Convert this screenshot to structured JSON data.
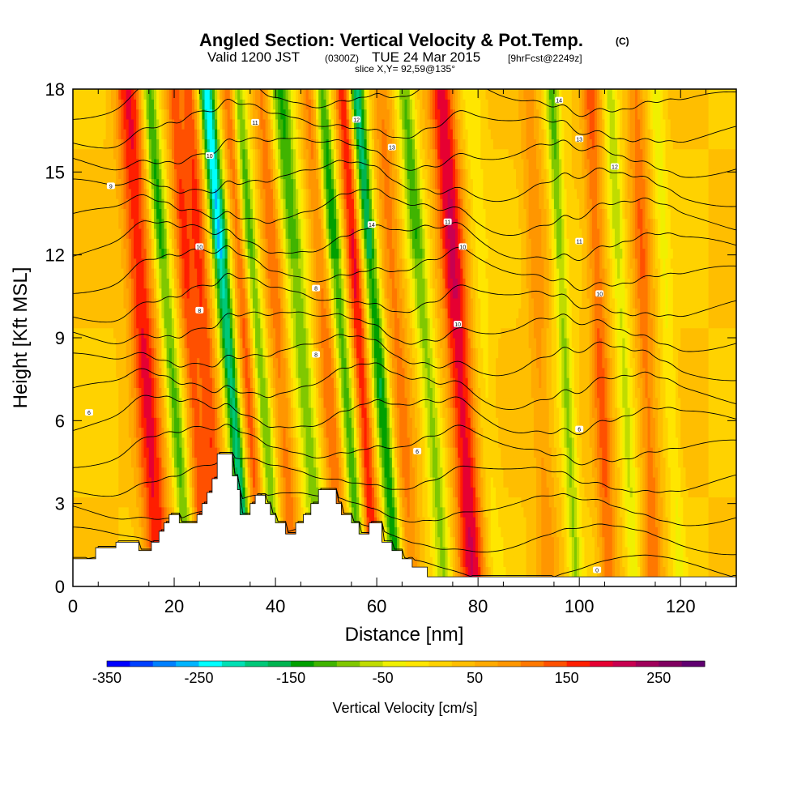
{
  "header": {
    "title": "Angled Section: Vertical Velocity & Pot.Temp.",
    "title_units": "(C)",
    "valid_prefix": "Valid 1200 JST",
    "valid_zulu": "(0300Z)",
    "valid_date": "TUE 24 Mar 2015",
    "forecast": "[9hrFcst@2249z]",
    "slice": "slice X,Y= 92,59@135°"
  },
  "chart_data": {
    "type": "heatmap",
    "xlabel": "Distance [nm]",
    "ylabel": "Height [Kft MSL]",
    "xlim": [
      0,
      131
    ],
    "ylim": [
      0,
      18
    ],
    "x_ticks": [
      0,
      20,
      40,
      60,
      80,
      100,
      120
    ],
    "y_ticks": [
      0,
      3,
      6,
      9,
      12,
      15,
      18
    ],
    "colorbar": {
      "label": "Vertical Velocity [cm/s]",
      "range": [
        -350,
        300
      ],
      "tick_values": [
        -350,
        -250,
        -150,
        -50,
        50,
        150,
        250
      ],
      "tick_labels": [
        "-350",
        "-250",
        "-150",
        "-50",
        "50",
        "150",
        "250"
      ],
      "colors": [
        "#0000ff",
        "#0040ff",
        "#0080ff",
        "#00b4ff",
        "#00ffff",
        "#00e0b4",
        "#00c878",
        "#00b450",
        "#00a000",
        "#40b400",
        "#80c800",
        "#c0dc00",
        "#f0f000",
        "#ffe600",
        "#ffd200",
        "#ffbe00",
        "#ffaa00",
        "#ff9600",
        "#ff7800",
        "#ff5000",
        "#ff1e00",
        "#e60032",
        "#c80050",
        "#a0005a",
        "#800060",
        "#600070"
      ]
    },
    "updrafts_downdrafts": [
      {
        "x": 14,
        "w": 2.6,
        "value": 150
      },
      {
        "x": 19,
        "w": 1.6,
        "value": -150
      },
      {
        "x": 23,
        "w": 1.6,
        "value": 110
      },
      {
        "x": 26,
        "w": 1.8,
        "value": 120
      },
      {
        "x": 30.5,
        "w": 1.6,
        "value": -260
      },
      {
        "x": 34,
        "w": 1.5,
        "value": 110
      },
      {
        "x": 36.5,
        "w": 1.5,
        "value": -140
      },
      {
        "x": 40.5,
        "w": 1.8,
        "value": 90
      },
      {
        "x": 45,
        "w": 2.2,
        "value": -140
      },
      {
        "x": 50,
        "w": 2.0,
        "value": 90
      },
      {
        "x": 53,
        "w": 1.6,
        "value": -170
      },
      {
        "x": 56.5,
        "w": 1.6,
        "value": 150
      },
      {
        "x": 60,
        "w": 1.6,
        "value": -200
      },
      {
        "x": 64,
        "w": 2.0,
        "value": 80
      },
      {
        "x": 69.5,
        "w": 1.8,
        "value": -130
      },
      {
        "x": 76,
        "w": 2.6,
        "value": 170
      },
      {
        "x": 81,
        "w": 2.0,
        "value": -40
      },
      {
        "x": 92,
        "w": 2.0,
        "value": 60
      },
      {
        "x": 97,
        "w": 1.4,
        "value": -120
      },
      {
        "x": 104,
        "w": 1.8,
        "value": 100
      },
      {
        "x": 108.5,
        "w": 1.4,
        "value": -90
      },
      {
        "x": 113,
        "w": 1.8,
        "value": 90
      },
      {
        "x": 117.5,
        "w": 1.4,
        "value": -60
      }
    ],
    "contour_labels": [
      {
        "x": 3.2,
        "y": 6.3,
        "text": "6"
      },
      {
        "x": 7.5,
        "y": 14.5,
        "text": "9"
      },
      {
        "x": 27,
        "y": 15.6,
        "text": "10"
      },
      {
        "x": 25,
        "y": 12.3,
        "text": "10"
      },
      {
        "x": 25,
        "y": 10,
        "text": "8"
      },
      {
        "x": 36,
        "y": 16.8,
        "text": "11"
      },
      {
        "x": 48,
        "y": 10.8,
        "text": "8"
      },
      {
        "x": 48,
        "y": 8.4,
        "text": "8"
      },
      {
        "x": 56,
        "y": 16.9,
        "text": "12"
      },
      {
        "x": 63,
        "y": 15.9,
        "text": "13"
      },
      {
        "x": 59,
        "y": 13.1,
        "text": "14"
      },
      {
        "x": 74,
        "y": 13.2,
        "text": "11"
      },
      {
        "x": 77,
        "y": 12.3,
        "text": "10"
      },
      {
        "x": 76,
        "y": 9.5,
        "text": "10"
      },
      {
        "x": 68,
        "y": 4.9,
        "text": "6"
      },
      {
        "x": 96,
        "y": 17.6,
        "text": "14"
      },
      {
        "x": 100,
        "y": 16.2,
        "text": "13"
      },
      {
        "x": 107,
        "y": 15.2,
        "text": "12"
      },
      {
        "x": 100,
        "y": 12.5,
        "text": "11"
      },
      {
        "x": 104,
        "y": 10.6,
        "text": "10"
      },
      {
        "x": 100,
        "y": 5.7,
        "text": "6"
      },
      {
        "x": 103.5,
        "y": 0.6,
        "text": "0"
      }
    ],
    "terrain": [
      [
        0,
        1
      ],
      [
        4.5,
        1
      ],
      [
        4.5,
        1.4
      ],
      [
        8.5,
        1.4
      ],
      [
        8.5,
        1.6
      ],
      [
        13,
        1.6
      ],
      [
        13,
        1.3
      ],
      [
        15.5,
        1.3
      ],
      [
        15.5,
        1.6
      ],
      [
        17,
        1.6
      ],
      [
        17,
        2
      ],
      [
        18,
        2
      ],
      [
        18,
        2.3
      ],
      [
        19,
        2.3
      ],
      [
        19,
        2.6
      ],
      [
        21,
        2.6
      ],
      [
        21,
        2.3
      ],
      [
        24.5,
        2.3
      ],
      [
        24.5,
        2.6
      ],
      [
        25.5,
        2.6
      ],
      [
        25.5,
        3
      ],
      [
        26.5,
        3
      ],
      [
        26.5,
        3.4
      ],
      [
        27.5,
        3.4
      ],
      [
        27.5,
        3.9
      ],
      [
        28.5,
        3.9
      ],
      [
        28.5,
        4.8
      ],
      [
        31.5,
        4.8
      ],
      [
        31.5,
        4
      ],
      [
        32.5,
        4
      ],
      [
        32.5,
        3.5
      ],
      [
        33,
        3.5
      ],
      [
        33,
        2.6
      ],
      [
        35,
        2.6
      ],
      [
        35,
        3
      ],
      [
        36,
        3
      ],
      [
        36,
        3.3
      ],
      [
        38,
        3.3
      ],
      [
        38,
        3
      ],
      [
        39,
        3
      ],
      [
        39,
        2.6
      ],
      [
        40,
        2.6
      ],
      [
        40,
        2.3
      ],
      [
        42,
        2.3
      ],
      [
        42,
        1.9
      ],
      [
        44,
        1.9
      ],
      [
        44,
        2.3
      ],
      [
        45.5,
        2.3
      ],
      [
        45.5,
        2.6
      ],
      [
        47,
        2.6
      ],
      [
        47,
        3
      ],
      [
        48.5,
        3
      ],
      [
        48.5,
        3.5
      ],
      [
        52,
        3.5
      ],
      [
        52,
        3
      ],
      [
        53,
        3
      ],
      [
        53,
        2.6
      ],
      [
        55,
        2.6
      ],
      [
        55,
        2.3
      ],
      [
        56.5,
        2.3
      ],
      [
        56.5,
        1.9
      ],
      [
        58.5,
        1.9
      ],
      [
        58.5,
        2.3
      ],
      [
        61,
        2.3
      ],
      [
        61,
        1.6
      ],
      [
        63,
        1.6
      ],
      [
        63,
        1.3
      ],
      [
        65,
        1.3
      ],
      [
        65,
        1
      ],
      [
        67,
        1
      ],
      [
        67,
        0.7
      ],
      [
        70,
        0.7
      ],
      [
        70,
        0.35
      ],
      [
        131,
        0.35
      ],
      [
        131,
        0
      ],
      [
        0,
        0
      ]
    ]
  }
}
